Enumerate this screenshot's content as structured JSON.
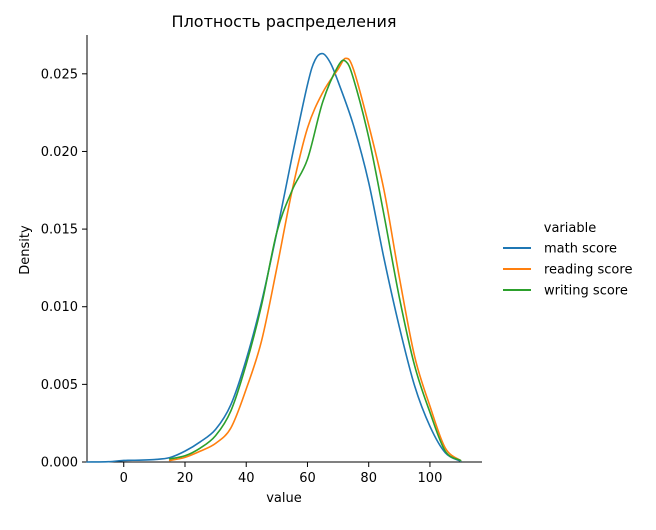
{
  "chart_data": {
    "type": "line",
    "title": "Плотность распределения",
    "xlabel": "value",
    "ylabel": "Density",
    "xlim": [
      -12,
      117
    ],
    "ylim": [
      0,
      0.0275
    ],
    "x_ticks": [
      0,
      20,
      40,
      60,
      80,
      100
    ],
    "x_tick_labels": [
      "0",
      "20",
      "40",
      "60",
      "80",
      "100"
    ],
    "y_ticks": [
      0,
      0.005,
      0.01,
      0.015,
      0.02,
      0.025
    ],
    "y_tick_labels": [
      "0.000",
      "0.005",
      "0.010",
      "0.015",
      "0.020",
      "0.025"
    ],
    "grid": false,
    "legend_title": "variable",
    "legend_position": "right",
    "series": [
      {
        "name": "math score",
        "color": "#1f77b4",
        "x": [
          -12,
          -5,
          0,
          5,
          10,
          15,
          20,
          25,
          30,
          35,
          40,
          45,
          50,
          55,
          60,
          62.5,
          65,
          67.5,
          70,
          75,
          80,
          85,
          90,
          95,
          100,
          105,
          110
        ],
        "y": [
          0,
          2e-05,
          0.0001,
          0.00012,
          0.00016,
          0.00028,
          0.0007,
          0.0013,
          0.0021,
          0.0037,
          0.0066,
          0.0103,
          0.0148,
          0.0197,
          0.0243,
          0.0259,
          0.0263,
          0.0257,
          0.0245,
          0.0217,
          0.018,
          0.0131,
          0.0087,
          0.0049,
          0.0023,
          0.0006,
          5e-05
        ]
      },
      {
        "name": "reading score",
        "color": "#ff7f0e",
        "x": [
          15,
          20,
          25,
          30,
          35,
          40,
          45,
          50,
          55,
          60,
          65,
          70,
          72.5,
          75,
          80,
          85,
          90,
          95,
          100,
          105,
          110
        ],
        "y": [
          0.0001,
          0.0003,
          0.0007,
          0.0012,
          0.0022,
          0.0047,
          0.0078,
          0.0125,
          0.0175,
          0.0215,
          0.0238,
          0.0253,
          0.026,
          0.0253,
          0.0217,
          0.0175,
          0.0119,
          0.0068,
          0.0036,
          0.0009,
          0.0001
        ]
      },
      {
        "name": "writing score",
        "color": "#2ca02c",
        "x": [
          15,
          20,
          25,
          30,
          35,
          40,
          45,
          50,
          55,
          60,
          65,
          70,
          72.5,
          75,
          80,
          85,
          90,
          95,
          100,
          105,
          110
        ],
        "y": [
          0.0002,
          0.0004,
          0.0009,
          0.0017,
          0.0033,
          0.0063,
          0.0101,
          0.0148,
          0.0175,
          0.0195,
          0.0232,
          0.0255,
          0.0258,
          0.0247,
          0.0209,
          0.0159,
          0.0106,
          0.0062,
          0.0032,
          0.0007,
          0.0001
        ]
      }
    ]
  }
}
